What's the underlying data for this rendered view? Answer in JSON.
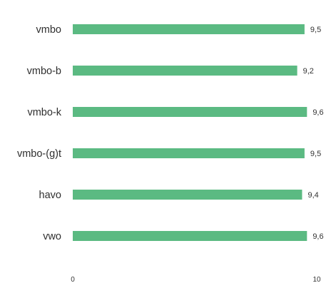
{
  "chart_data": {
    "type": "bar",
    "orientation": "horizontal",
    "title": "",
    "xlabel": "",
    "ylabel": "",
    "categories": [
      "vmbo",
      "vmbo-b",
      "vmbo-k",
      "vmbo-(g)t",
      "havo",
      "vwo"
    ],
    "values": [
      9.5,
      9.2,
      9.6,
      9.5,
      9.4,
      9.6
    ],
    "value_labels": [
      "9,5",
      "9,2",
      "9,6",
      "9,5",
      "9,4",
      "9,6"
    ],
    "xlim": [
      0,
      10
    ],
    "ticks": [
      0,
      10
    ],
    "tick_labels": [
      "0",
      "10"
    ],
    "grid": false,
    "legend": "none",
    "bar_color": "#5bba82"
  }
}
